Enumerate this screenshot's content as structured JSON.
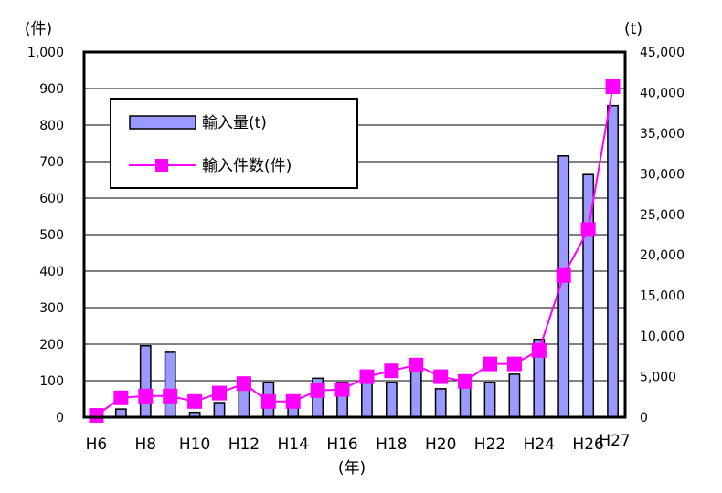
{
  "chart_data": {
    "type": "bar+line",
    "categories": [
      "H6",
      "H7",
      "H8",
      "H9",
      "H10",
      "H11",
      "H12",
      "H13",
      "H14",
      "H15",
      "H16",
      "H17",
      "H18",
      "H19",
      "H20",
      "H21",
      "H22",
      "H23",
      "H24",
      "H25",
      "H26",
      "H27"
    ],
    "x_tick_labels": [
      "H6",
      "H8",
      "H10",
      "H12",
      "H14",
      "H16",
      "H18",
      "H20",
      "H22",
      "H24",
      "H26",
      "H27"
    ],
    "series": [
      {
        "name": "輸入量(t)",
        "type": "bar",
        "axis": "right",
        "color": "#9999ff",
        "values": [
          0,
          1000,
          8800,
          8000,
          600,
          1800,
          3800,
          4300,
          1800,
          4800,
          4300,
          5100,
          4300,
          6300,
          3500,
          4400,
          4300,
          5300,
          9600,
          32200,
          29900,
          38400
        ]
      },
      {
        "name": "輸入件数(件)",
        "type": "line",
        "axis": "left",
        "color": "#ff00ff",
        "values": [
          5,
          53,
          58,
          58,
          43,
          66,
          92,
          43,
          43,
          73,
          76,
          111,
          127,
          143,
          111,
          98,
          146,
          146,
          183,
          388,
          514,
          905
        ]
      }
    ],
    "y_left": {
      "unit_label": "(件)",
      "ylim": [
        0,
        1000
      ],
      "ticks": [
        "0",
        "100",
        "200",
        "300",
        "400",
        "500",
        "600",
        "700",
        "800",
        "900",
        "1,000"
      ]
    },
    "y_right": {
      "unit_label": "(t)",
      "ylim": [
        0,
        45000
      ],
      "ticks": [
        "0",
        "5,000",
        "10,000",
        "15,000",
        "20,000",
        "25,000",
        "30,000",
        "35,000",
        "40,000",
        "45,000"
      ]
    },
    "x_unit_label": "(年)",
    "grid": true,
    "legend_position": "upper-left"
  }
}
